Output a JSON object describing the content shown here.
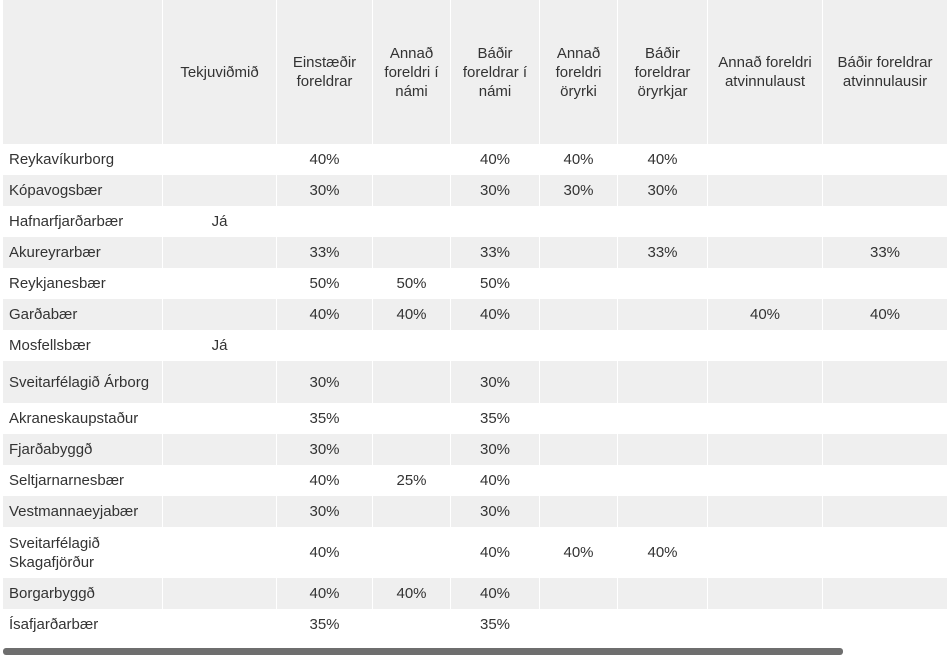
{
  "headers": [
    "",
    "Tekjuviðmið",
    "Einstæðir foreldrar",
    "Annað foreldri í námi",
    "Báðir foreldrar í námi",
    "Annað foreldri öryrki",
    "Báðir foreldrar öryrkjar",
    "Annað foreldri atvinnulaust",
    "Báðir foreldrar atvinnulausir"
  ],
  "rows": [
    [
      "Reykavíkurborg",
      "",
      "40%",
      "",
      "40%",
      "40%",
      "40%",
      "",
      ""
    ],
    [
      "Kópavogsbær",
      "",
      "30%",
      "",
      "30%",
      "30%",
      "30%",
      "",
      ""
    ],
    [
      "Hafnarfjarðarbær",
      "Já",
      "",
      "",
      "",
      "",
      "",
      "",
      ""
    ],
    [
      "Akureyrarbær",
      "",
      "33%",
      "",
      "33%",
      "",
      "33%",
      "",
      "33%"
    ],
    [
      "Reykjanesbær",
      "",
      "50%",
      "50%",
      "50%",
      "",
      "",
      "",
      ""
    ],
    [
      "Garðabær",
      "",
      "40%",
      "40%",
      "40%",
      "",
      "",
      "40%",
      "40%"
    ],
    [
      "Mosfellsbær",
      "Já",
      "",
      "",
      "",
      "",
      "",
      "",
      ""
    ],
    [
      "Sveitarfélagið Árborg",
      "",
      "30%",
      "",
      "30%",
      "",
      "",
      "",
      ""
    ],
    [
      "Akraneskaupstaður",
      "",
      "35%",
      "",
      "35%",
      "",
      "",
      "",
      ""
    ],
    [
      "Fjarðabyggð",
      "",
      "30%",
      "",
      "30%",
      "",
      "",
      "",
      ""
    ],
    [
      "Seltjarnarnesbær",
      "",
      "40%",
      "25%",
      "40%",
      "",
      "",
      "",
      ""
    ],
    [
      "Vestmannaeyjabær",
      "",
      "30%",
      "",
      "30%",
      "",
      "",
      "",
      ""
    ],
    [
      "Sveitarfélagið Skagafjörður",
      "",
      "40%",
      "",
      "40%",
      "40%",
      "40%",
      "",
      ""
    ],
    [
      "Borgarbyggð",
      "",
      "40%",
      "40%",
      "40%",
      "",
      "",
      "",
      ""
    ],
    [
      "Ísafjarðarbær",
      "",
      "35%",
      "",
      "35%",
      "",
      "",
      "",
      ""
    ]
  ],
  "colors": {
    "header_bg": "#efefef",
    "stripe_bg": "#efefef",
    "text": "#333333",
    "scrollbar": "#6e6e6e"
  }
}
